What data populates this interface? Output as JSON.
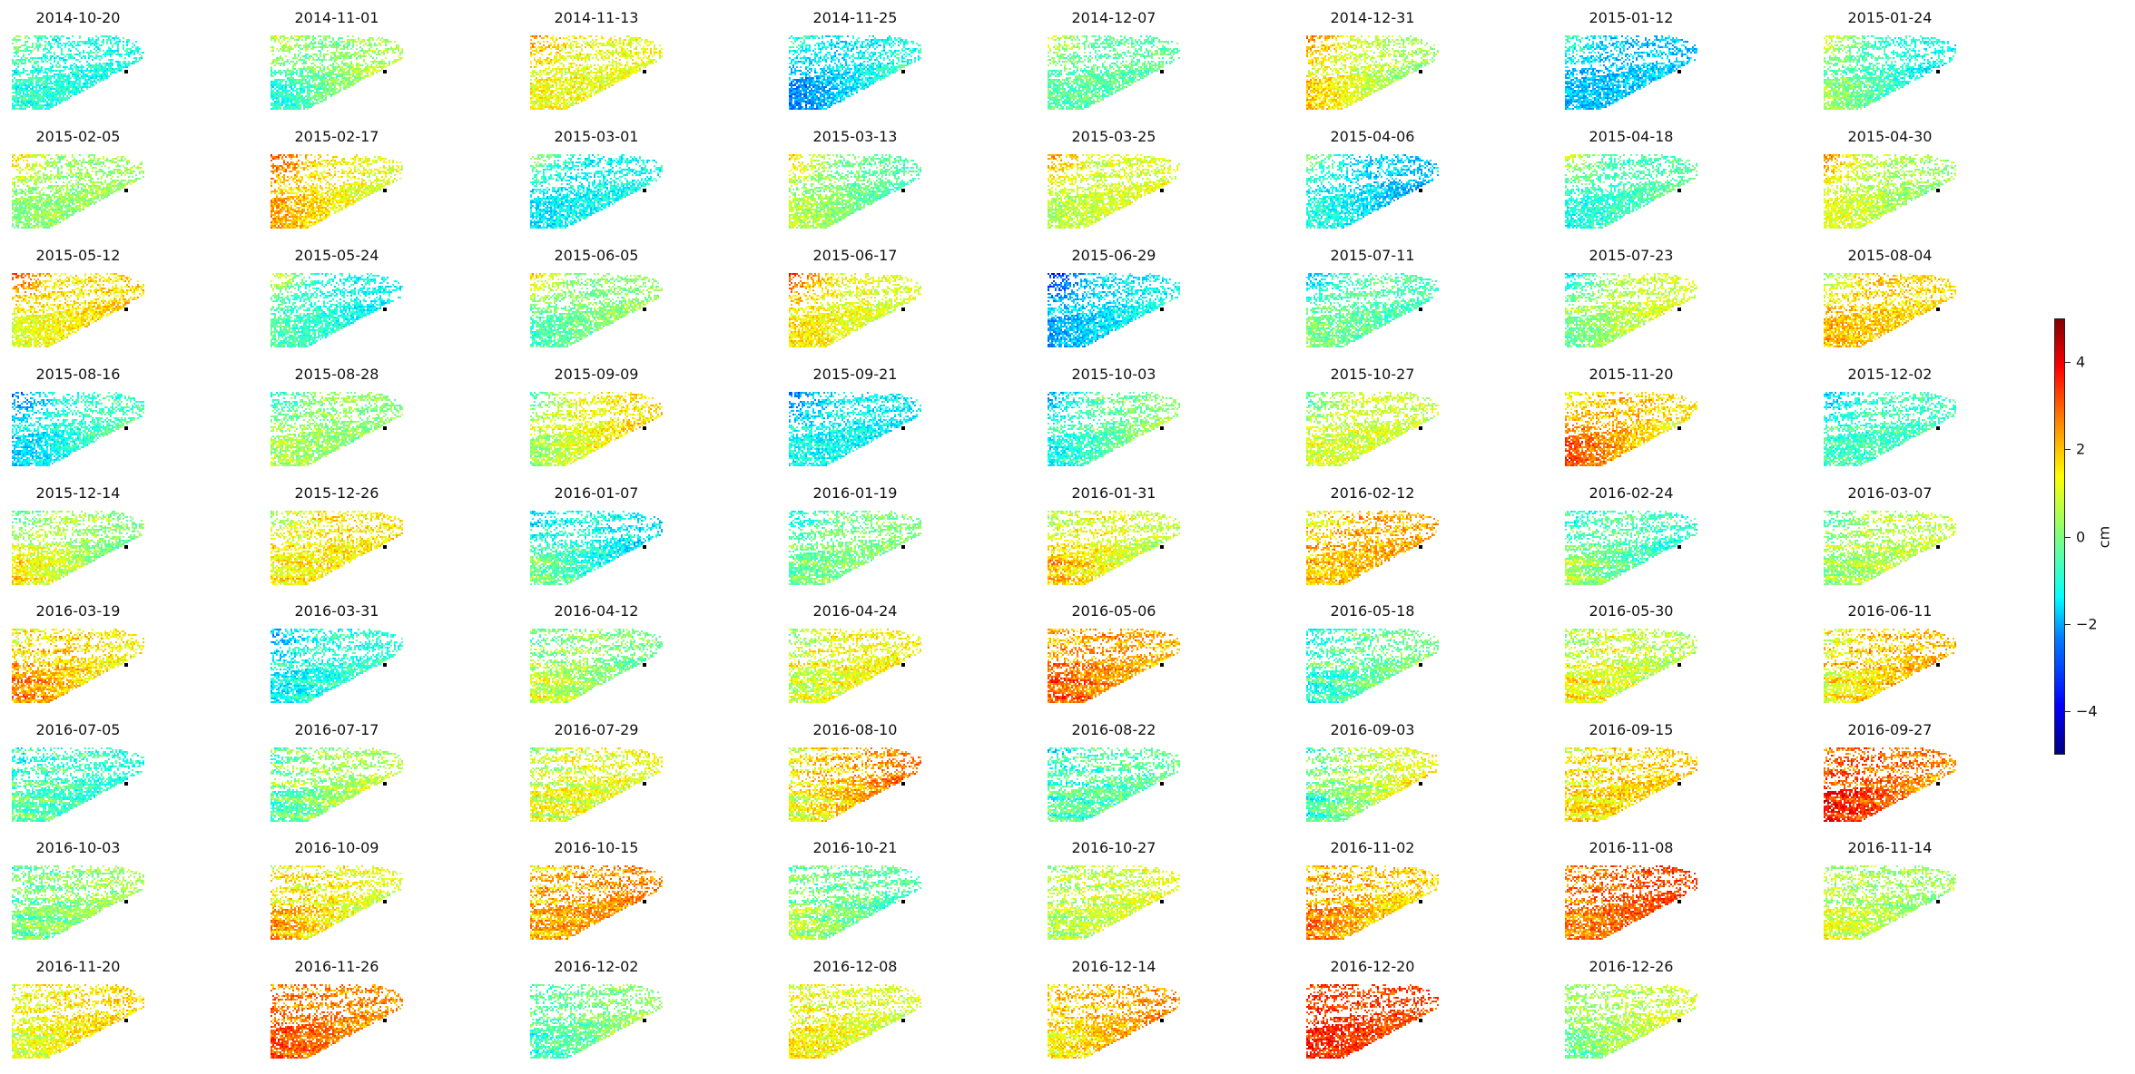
{
  "chart_data": {
    "type": "heatmap",
    "layout": "small-multiples grid",
    "colormap": "jet",
    "panels": [
      "2014-10-20",
      "2014-11-01",
      "2014-11-13",
      "2014-11-25",
      "2014-12-07",
      "2014-12-31",
      "2015-01-12",
      "2015-01-24",
      "2015-02-05",
      "2015-02-17",
      "2015-03-01",
      "2015-03-13",
      "2015-03-25",
      "2015-04-06",
      "2015-04-18",
      "2015-04-30",
      "2015-05-12",
      "2015-05-24",
      "2015-06-05",
      "2015-06-17",
      "2015-06-29",
      "2015-07-11",
      "2015-07-23",
      "2015-08-04",
      "2015-08-16",
      "2015-08-28",
      "2015-09-09",
      "2015-09-21",
      "2015-10-03",
      "2015-10-27",
      "2015-11-20",
      "2015-12-02",
      "2015-12-14",
      "2015-12-26",
      "2016-01-07",
      "2016-01-19",
      "2016-01-31",
      "2016-02-12",
      "2016-02-24",
      "2016-03-07",
      "2016-03-19",
      "2016-03-31",
      "2016-04-12",
      "2016-04-24",
      "2016-05-06",
      "2016-05-18",
      "2016-05-30",
      "2016-06-11",
      "2016-07-05",
      "2016-07-17",
      "2016-07-29",
      "2016-08-10",
      "2016-08-22",
      "2016-09-03",
      "2016-09-15",
      "2016-09-27",
      "2016-10-03",
      "2016-10-09",
      "2016-10-15",
      "2016-10-21",
      "2016-10-27",
      "2016-11-02",
      "2016-11-08",
      "2016-11-14",
      "2016-11-20",
      "2016-11-26",
      "2016-12-02",
      "2016-12-08",
      "2016-12-14",
      "2016-12-20",
      "2016-12-26"
    ],
    "colorbar": {
      "label": "cm",
      "range": [
        -5,
        5
      ],
      "ticks": [
        "4",
        "2",
        "0",
        "−2",
        "−4"
      ],
      "tick_values": [
        4,
        2,
        0,
        -2,
        -4
      ]
    },
    "axes_visible": false,
    "reference_point_color": "#000000"
  }
}
